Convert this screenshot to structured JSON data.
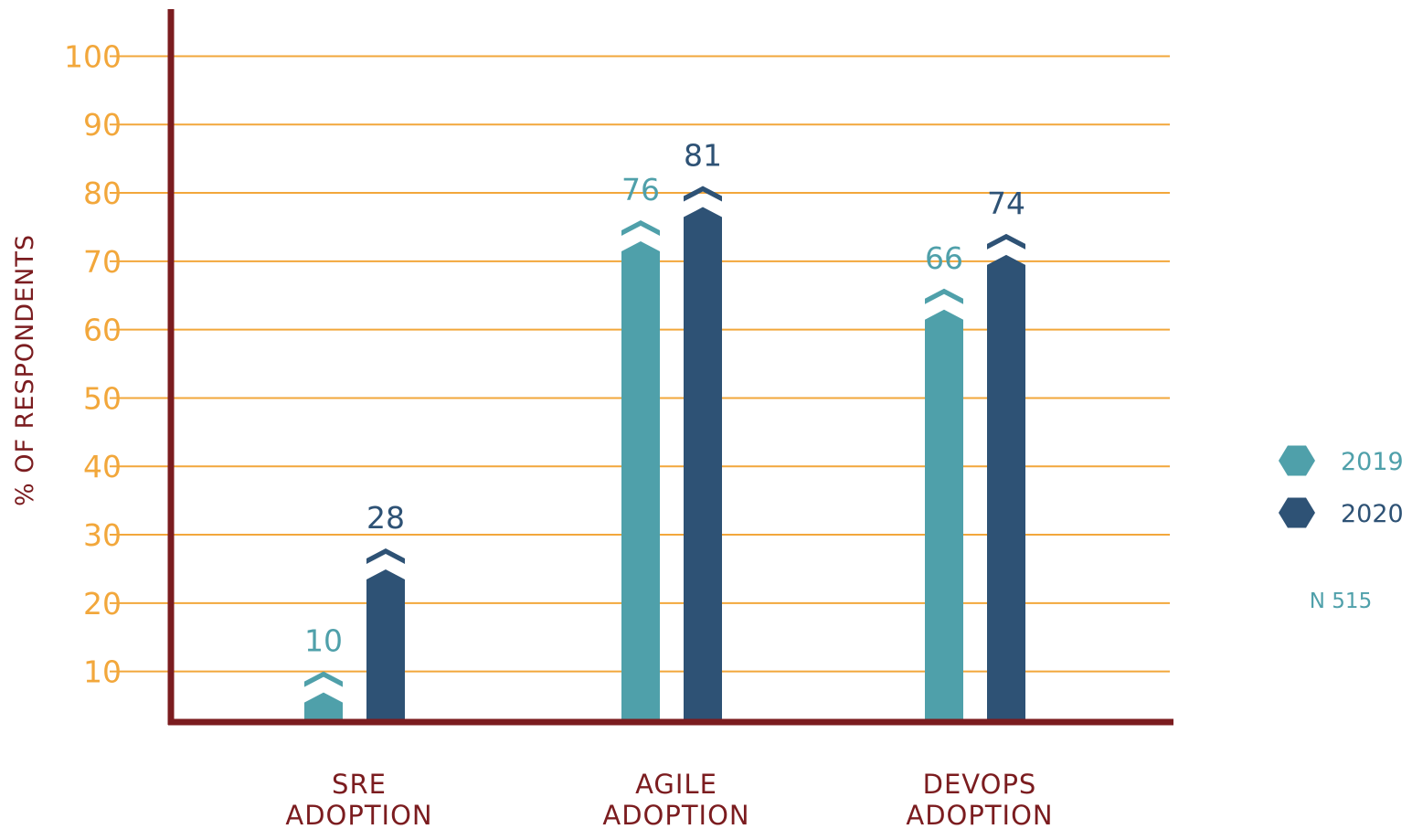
{
  "chart_data": {
    "type": "bar",
    "ylabel": "% OF RESPONDENTS",
    "yticks": [
      10,
      20,
      30,
      40,
      50,
      60,
      70,
      80,
      90,
      100
    ],
    "ylim": [
      3,
      100
    ],
    "categories": [
      [
        "SRE",
        "ADOPTION"
      ],
      [
        "AGILE",
        "ADOPTION"
      ],
      [
        "DEVOPS",
        "ADOPTION"
      ]
    ],
    "series": [
      {
        "name": "2019",
        "values": [
          10,
          76,
          66
        ],
        "color": "#4fa0aa"
      },
      {
        "name": "2020",
        "values": [
          28,
          81,
          74
        ],
        "color": "#2e5275"
      }
    ],
    "note": "N 515",
    "grid": true,
    "legend_position": "right",
    "colors": {
      "axis": "#7b1c1f",
      "grid": "#f2a73b",
      "tick_text": "#f2a73b",
      "label_text": "#7b1c1f",
      "note": "#4fa0aa"
    }
  }
}
